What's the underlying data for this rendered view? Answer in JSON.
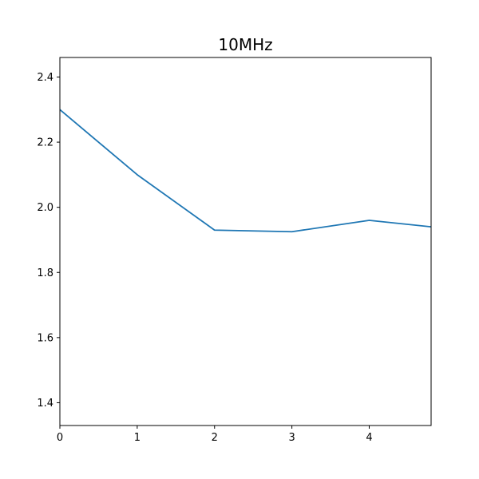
{
  "chart_data": {
    "type": "line",
    "title": "10MHz",
    "xlabel": "",
    "ylabel": "",
    "xlim": [
      0,
      4.8
    ],
    "ylim": [
      1.33,
      2.46
    ],
    "xticks": [
      0,
      1,
      2,
      3,
      4
    ],
    "xtick_labels": [
      "0",
      "1",
      "2",
      "3",
      "4"
    ],
    "yticks": [
      1.4,
      1.6,
      1.8,
      2.0,
      2.2,
      2.4
    ],
    "ytick_labels": [
      "1.4",
      "1.6",
      "1.8",
      "2.0",
      "2.2",
      "2.4"
    ],
    "grid": false,
    "series": [
      {
        "color": "#1f77b4",
        "x": [
          0,
          1,
          2,
          3,
          4,
          5
        ],
        "y": [
          2.3,
          2.1,
          1.93,
          1.925,
          1.96,
          1.935
        ]
      }
    ]
  }
}
